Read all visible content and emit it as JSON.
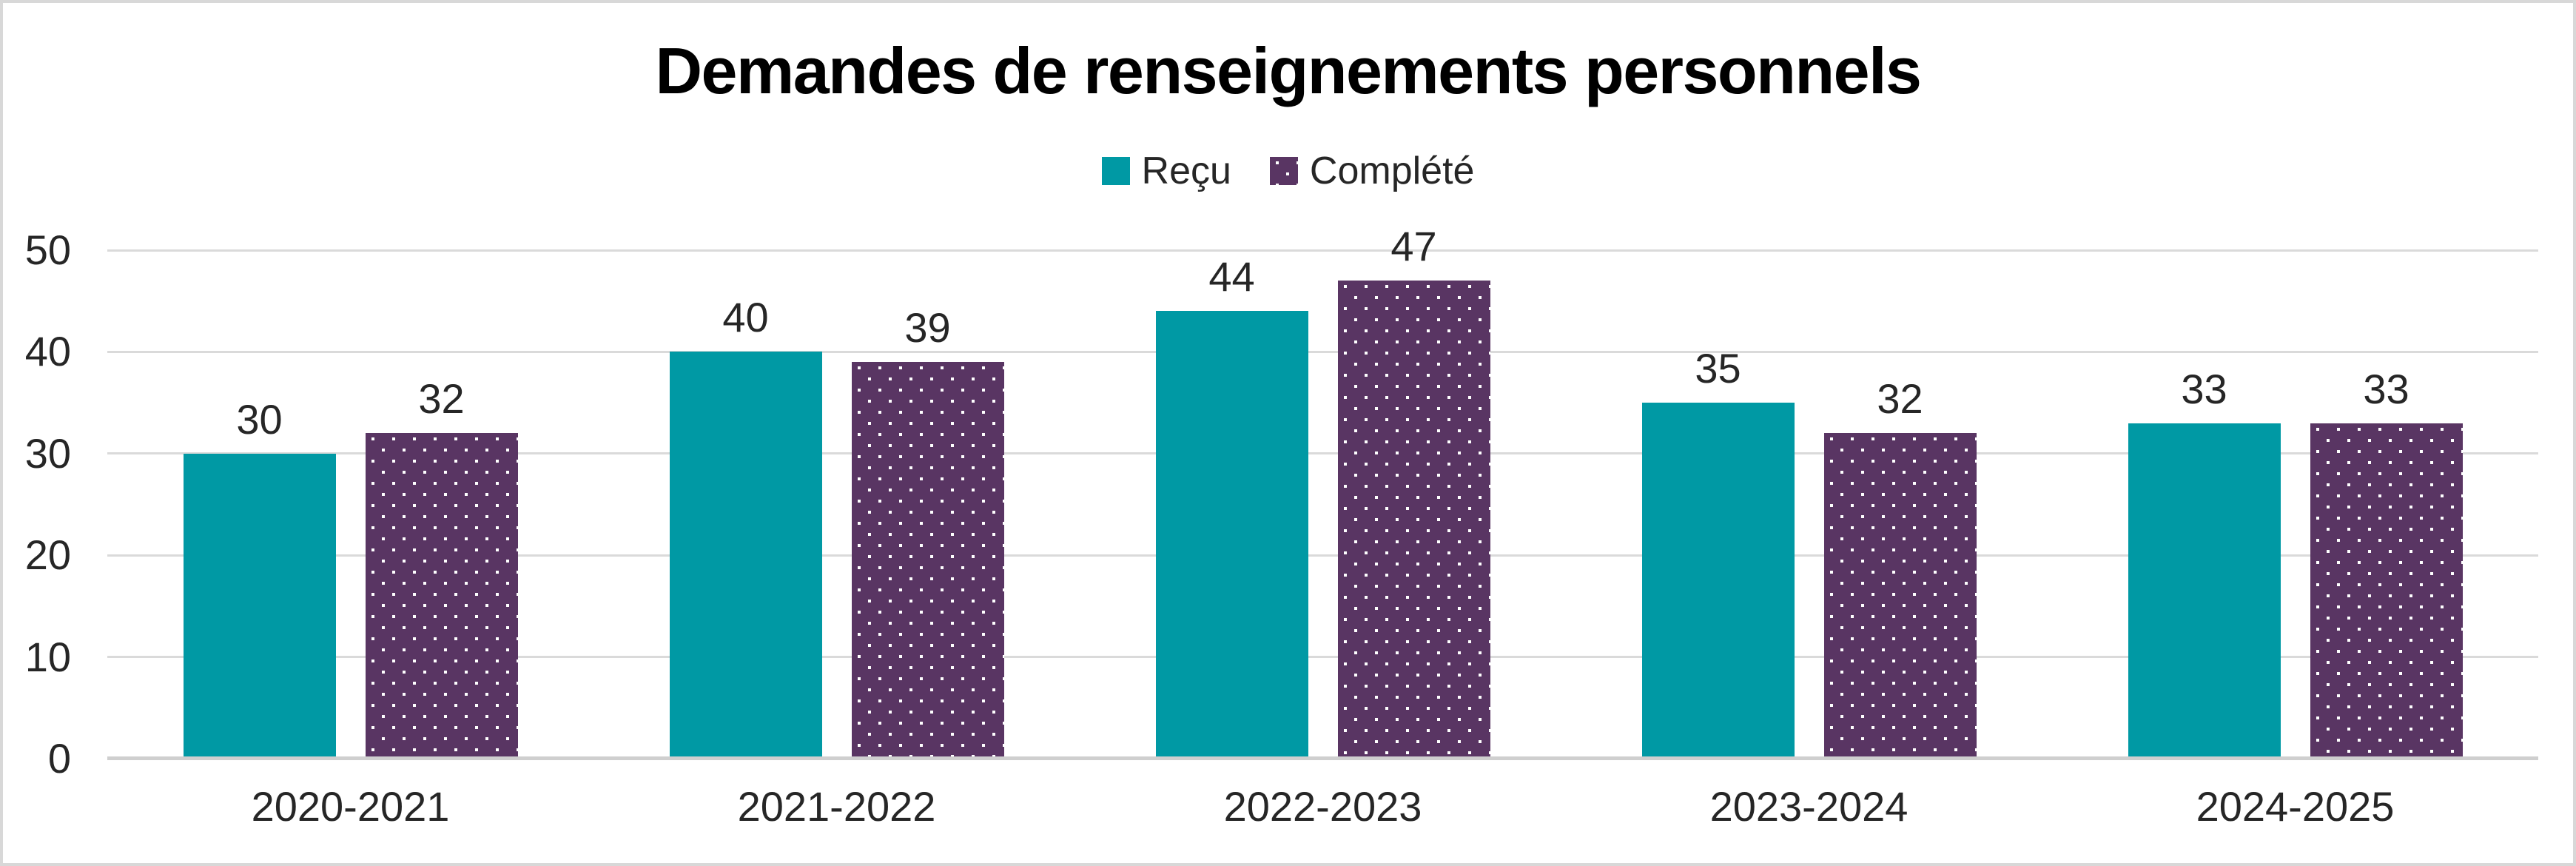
{
  "title": "Demandes de renseignements personnels",
  "legend": {
    "items": [
      {
        "label": "Reçu",
        "swatch": "teal-solid"
      },
      {
        "label": "Complété",
        "swatch": "purple-dotted"
      }
    ]
  },
  "colors": {
    "teal": "#0099a4",
    "purple": "#593563",
    "dot": "#ffffff",
    "gridline": "#dadada",
    "baseline": "#cfcfcf",
    "text": "#262626",
    "title_text": "#000000",
    "frame_border": "#d8d8d8"
  },
  "chart_data": {
    "type": "bar",
    "title": "Demandes de renseignements personnels",
    "categories": [
      "2020-2021",
      "2021-2022",
      "2022-2023",
      "2023-2024",
      "2024-2025"
    ],
    "series": [
      {
        "name": "Reçu",
        "style": "solid-teal",
        "values": [
          30,
          40,
          44,
          35,
          33
        ]
      },
      {
        "name": "Complété",
        "style": "dotted-purple",
        "values": [
          32,
          39,
          47,
          32,
          33
        ]
      }
    ],
    "xlabel": "",
    "ylabel": "",
    "ylim": [
      0,
      50
    ],
    "yticks": [
      0,
      10,
      20,
      30,
      40,
      50
    ],
    "grid": true,
    "legend_position": "top-center",
    "value_labels": true
  }
}
